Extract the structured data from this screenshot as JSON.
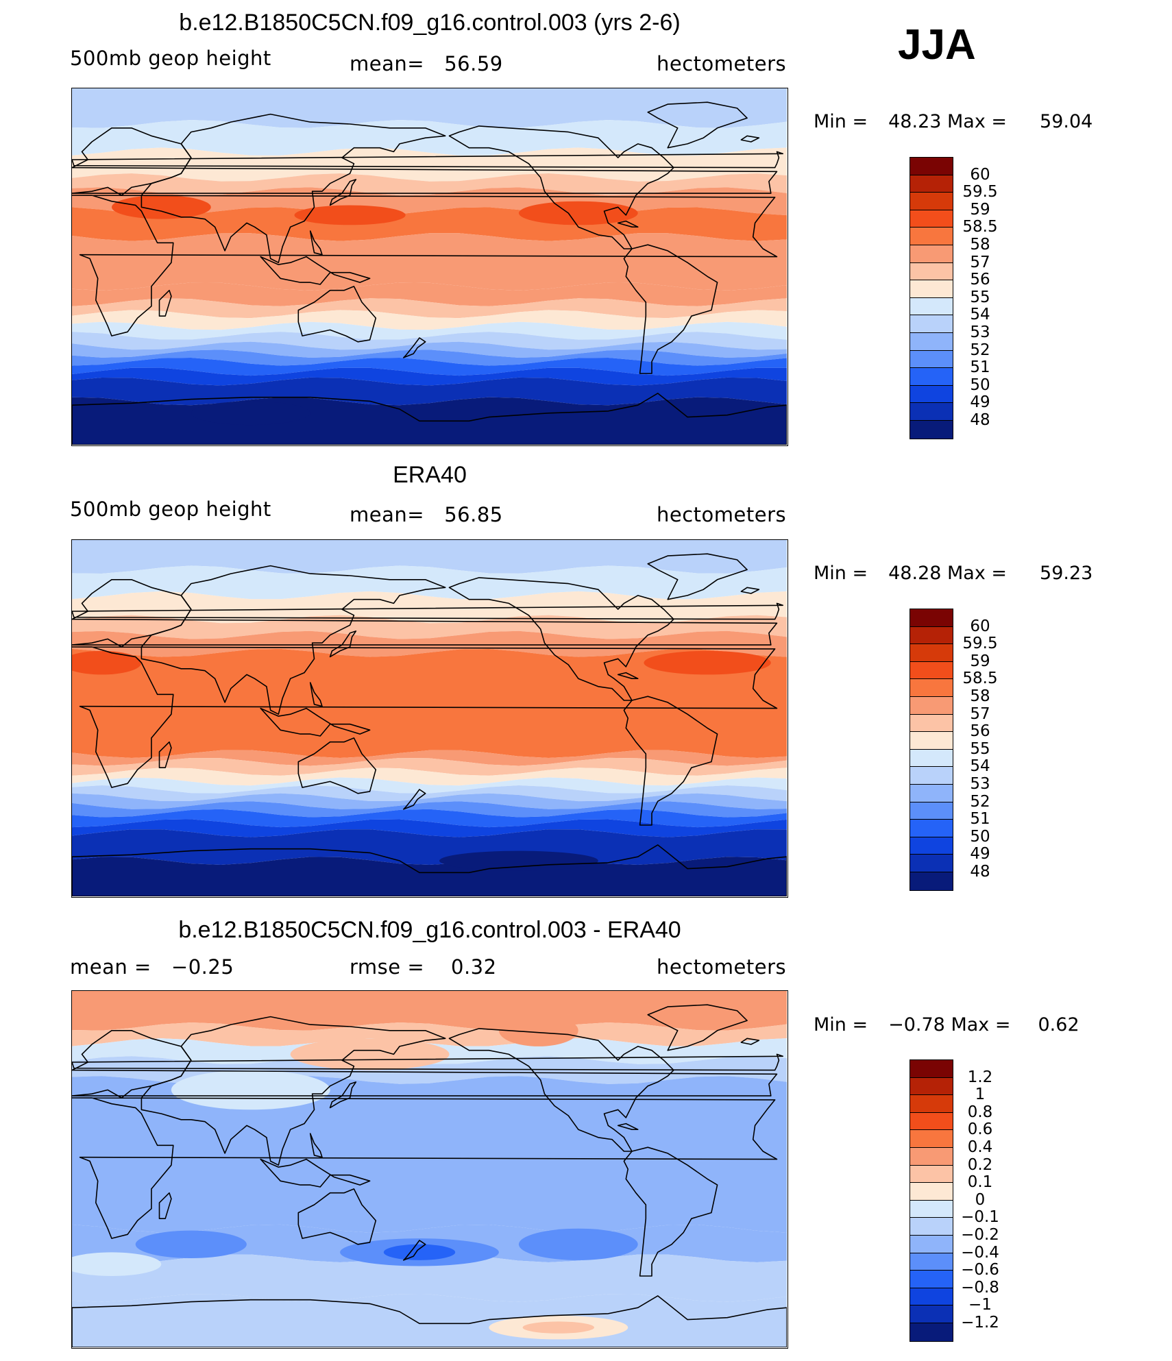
{
  "season": "JJA",
  "chart_data": [
    {
      "type": "heatmap",
      "title": "b.e12.B1850C5CN.f09_g16.control.003 (yrs 2-6)",
      "left_label": "500mb geop height",
      "mid_label": "mean=",
      "mid_value": "56.59",
      "units": "hectometers",
      "min_label": "Min =",
      "min_value": "48.23",
      "max_label": "Max =",
      "max_value": "59.04",
      "colorbar": {
        "levels": [
          "60",
          "59.5",
          "59",
          "58.5",
          "58",
          "57",
          "56",
          "55",
          "54",
          "53",
          "52",
          "51",
          "50",
          "49",
          "48"
        ],
        "colors": [
          "#7a0403",
          "#b52206",
          "#d63a0a",
          "#f24e1b",
          "#f8763e",
          "#f89a74",
          "#fcc3a6",
          "#fde8d4",
          "#d4e8fb",
          "#b9d2fa",
          "#8fb4fa",
          "#5c8ffa",
          "#2563f7",
          "#0f44e0",
          "#0b30b5",
          "#081b7a"
        ]
      },
      "zonal_bands": [
        {
          "lat_top": 90,
          "lat_bottom": 72,
          "level": "54"
        },
        {
          "lat_top": 72,
          "lat_bottom": 58,
          "level": "55"
        },
        {
          "lat_top": 58,
          "lat_bottom": 45,
          "level": "56"
        },
        {
          "lat_top": 45,
          "lat_bottom": 38,
          "level": "57"
        },
        {
          "lat_top": 38,
          "lat_bottom": 28,
          "level": "58"
        },
        {
          "lat_top": 28,
          "lat_bottom": 15,
          "level": "58.5"
        },
        {
          "lat_top": 15,
          "lat_bottom": -10,
          "level": "58"
        },
        {
          "lat_top": -10,
          "lat_bottom": -18,
          "level": "58"
        },
        {
          "lat_top": -18,
          "lat_bottom": -24,
          "level": "57"
        },
        {
          "lat_top": -24,
          "lat_bottom": -30,
          "level": "56"
        },
        {
          "lat_top": -30,
          "lat_bottom": -35,
          "level": "55"
        },
        {
          "lat_top": -35,
          "lat_bottom": -40,
          "level": "54"
        },
        {
          "lat_top": -40,
          "lat_bottom": -44,
          "level": "53"
        },
        {
          "lat_top": -44,
          "lat_bottom": -48,
          "level": "52"
        },
        {
          "lat_top": -48,
          "lat_bottom": -53,
          "level": "51"
        },
        {
          "lat_top": -53,
          "lat_bottom": -58,
          "level": "50"
        },
        {
          "lat_top": -58,
          "lat_bottom": -68,
          "level": "49"
        },
        {
          "lat_top": -68,
          "lat_bottom": -90,
          "level": "48"
        }
      ],
      "blobs": [
        {
          "lon": 140,
          "lat": 26,
          "rlon": 28,
          "rlat": 5,
          "level": "59"
        },
        {
          "lon": 255,
          "lat": 27,
          "rlon": 30,
          "rlat": 6,
          "level": "59"
        },
        {
          "lon": 45,
          "lat": 30,
          "rlon": 25,
          "rlat": 6,
          "level": "59"
        },
        {
          "lon": 90,
          "lat": -74,
          "rlon": 30,
          "rlat": 6,
          "level": "48"
        }
      ]
    },
    {
      "type": "heatmap",
      "title": "ERA40",
      "left_label": "500mb geop height",
      "mid_label": "mean=",
      "mid_value": "56.85",
      "units": "hectometers",
      "min_label": "Min =",
      "min_value": "48.28",
      "max_label": "Max =",
      "max_value": "59.23",
      "colorbar": {
        "levels": [
          "60",
          "59.5",
          "59",
          "58.5",
          "58",
          "57",
          "56",
          "55",
          "54",
          "53",
          "52",
          "51",
          "50",
          "49",
          "48"
        ],
        "colors": [
          "#7a0403",
          "#b52206",
          "#d63a0a",
          "#f24e1b",
          "#f8763e",
          "#f89a74",
          "#fcc3a6",
          "#fde8d4",
          "#d4e8fb",
          "#b9d2fa",
          "#8fb4fa",
          "#5c8ffa",
          "#2563f7",
          "#0f44e0",
          "#0b30b5",
          "#081b7a"
        ]
      },
      "zonal_bands": [
        {
          "lat_top": 90,
          "lat_bottom": 75,
          "level": "54"
        },
        {
          "lat_top": 75,
          "lat_bottom": 62,
          "level": "55"
        },
        {
          "lat_top": 62,
          "lat_bottom": 50,
          "level": "56"
        },
        {
          "lat_top": 50,
          "lat_bottom": 42,
          "level": "57"
        },
        {
          "lat_top": 42,
          "lat_bottom": 33,
          "level": "58"
        },
        {
          "lat_top": 33,
          "lat_bottom": -18,
          "level": "58.5"
        },
        {
          "lat_top": -18,
          "lat_bottom": -22,
          "level": "58"
        },
        {
          "lat_top": -22,
          "lat_bottom": -27,
          "level": "57"
        },
        {
          "lat_top": -27,
          "lat_bottom": -32,
          "level": "56"
        },
        {
          "lat_top": -32,
          "lat_bottom": -36,
          "level": "55"
        },
        {
          "lat_top": -36,
          "lat_bottom": -40,
          "level": "54"
        },
        {
          "lat_top": -40,
          "lat_bottom": -44,
          "level": "53"
        },
        {
          "lat_top": -44,
          "lat_bottom": -48,
          "level": "52"
        },
        {
          "lat_top": -48,
          "lat_bottom": -53,
          "level": "51"
        },
        {
          "lat_top": -53,
          "lat_bottom": -58,
          "level": "50"
        },
        {
          "lat_top": -58,
          "lat_bottom": -72,
          "level": "49"
        },
        {
          "lat_top": -72,
          "lat_bottom": -90,
          "level": "48"
        }
      ],
      "blobs": [
        {
          "lon": 320,
          "lat": 28,
          "rlon": 32,
          "rlat": 6,
          "level": "59"
        },
        {
          "lon": 15,
          "lat": 28,
          "rlon": 20,
          "rlat": 6,
          "level": "59"
        },
        {
          "lon": 225,
          "lat": -72,
          "rlon": 40,
          "rlat": 5,
          "level": "48"
        }
      ]
    },
    {
      "type": "heatmap",
      "title": "b.e12.B1850C5CN.f09_g16.control.003 - ERA40",
      "left_label": "mean =",
      "left_value": "−0.25",
      "mid_label": "rmse =",
      "mid_value": "0.32",
      "units": "hectometers",
      "min_label": "Min =",
      "min_value": "−0.78",
      "max_label": "Max =",
      "max_value": "0.62",
      "colorbar": {
        "levels": [
          "1.2",
          "1",
          "0.8",
          "0.6",
          "0.4",
          "0.2",
          "0.1",
          "0",
          "−0.1",
          "−0.2",
          "−0.4",
          "−0.6",
          "−0.8",
          "−1",
          "−1.2"
        ],
        "colors": [
          "#7a0403",
          "#b52206",
          "#d63a0a",
          "#f24e1b",
          "#f8763e",
          "#f89a74",
          "#fcc3a6",
          "#fde8d4",
          "#d4e8fb",
          "#b9d2fa",
          "#8fb4fa",
          "#5c8ffa",
          "#2563f7",
          "#0f44e0",
          "#0b30b5",
          "#081b7a"
        ]
      },
      "zonal_bands": [
        {
          "lat_top": 90,
          "lat_bottom": 72,
          "level": "0.4"
        },
        {
          "lat_top": 72,
          "lat_bottom": 64,
          "level": "0.2"
        },
        {
          "lat_top": 64,
          "lat_bottom": 55,
          "level": "0"
        },
        {
          "lat_top": 55,
          "lat_bottom": 45,
          "level": "−0.1"
        },
        {
          "lat_top": 45,
          "lat_bottom": -30,
          "level": "−0.2"
        },
        {
          "lat_top": -30,
          "lat_bottom": -45,
          "level": "−0.2"
        },
        {
          "lat_top": -45,
          "lat_bottom": -65,
          "level": "−0.1"
        },
        {
          "lat_top": -65,
          "lat_bottom": -90,
          "level": "−0.1"
        }
      ],
      "blobs": [
        {
          "lon": 150,
          "lat": 58,
          "rlon": 40,
          "rlat": 8,
          "level": "0.2"
        },
        {
          "lon": 90,
          "lat": 40,
          "rlon": 40,
          "rlat": 10,
          "level": "0"
        },
        {
          "lon": 60,
          "lat": -38,
          "rlon": 28,
          "rlat": 7,
          "level": "−0.4"
        },
        {
          "lon": 175,
          "lat": -42,
          "rlon": 40,
          "rlat": 7,
          "level": "−0.4"
        },
        {
          "lon": 175,
          "lat": -42,
          "rlon": 18,
          "rlat": 4,
          "level": "−0.6"
        },
        {
          "lon": 255,
          "lat": -38,
          "rlon": 30,
          "rlat": 8,
          "level": "−0.4"
        },
        {
          "lon": 245,
          "lat": -80,
          "rlon": 35,
          "rlat": 6,
          "level": "0.1"
        },
        {
          "lon": 245,
          "lat": -80,
          "rlon": 18,
          "rlat": 3,
          "level": "0.2"
        },
        {
          "lon": 235,
          "lat": 70,
          "rlon": 20,
          "rlat": 8,
          "level": "0.4"
        },
        {
          "lon": 20,
          "lat": -48,
          "rlon": 25,
          "rlat": 6,
          "level": "0"
        }
      ]
    }
  ]
}
